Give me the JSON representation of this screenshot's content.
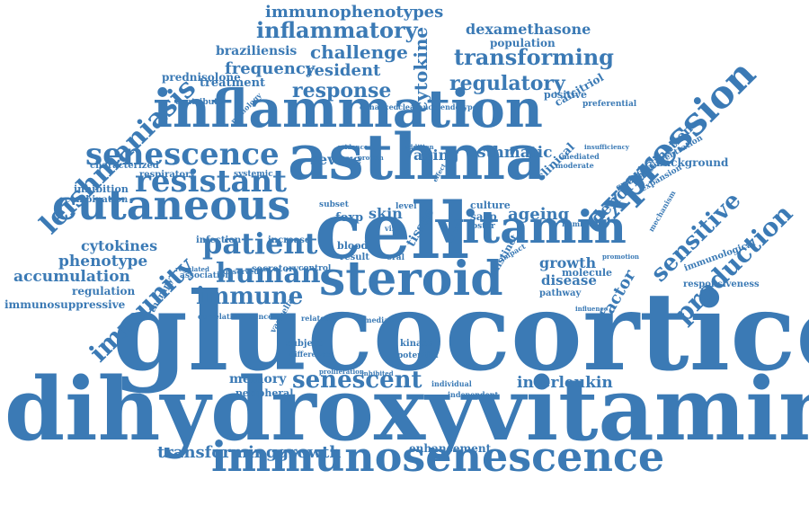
{
  "color": "#3b7ab5",
  "words": [
    "glucocorticoid",
    "dihydroxyvitamin",
    "cell",
    "asthma",
    "inflammation",
    "steroid",
    "vitamin",
    "immunosenescence",
    "cutaneous",
    "expression",
    "senescence",
    "resistant",
    "patient",
    "human",
    "immune",
    "senescent",
    "leishmaniasis",
    "immunity",
    "production",
    "sensitive",
    "transforminggrowth",
    "response",
    "regulatory",
    "transforming",
    "challenge",
    "resident",
    "frequency",
    "inflammatory",
    "immunophenotypes",
    "cytokine",
    "dexamethasone",
    "population",
    "braziliensis",
    "prednisolone",
    "treatment",
    "interleukin",
    "enhancement",
    "memory",
    "peripheral",
    "accumulation",
    "phenotype",
    "cytokines",
    "regulation",
    "immunosuppressive",
    "inhibition",
    "combination",
    "characterized",
    "respiratory",
    "systemic",
    "contribute",
    "pathology",
    "ageing",
    "dendritic",
    "vaccination",
    "background",
    "factor",
    "growth",
    "disease",
    "molecule",
    "immunological",
    "responsiveness",
    "pathway",
    "aging",
    "asthmatic",
    "clinical",
    "severe",
    "skin",
    "foxp",
    "sasp",
    "culture",
    "zoster",
    "infection",
    "increase",
    "secretory",
    "control",
    "blood",
    "result",
    "subject",
    "difference",
    "kinase",
    "potential",
    "individual",
    "independent",
    "calcitriol",
    "positive",
    "preferential",
    "specific",
    "concentration",
    "expansion",
    "mechanism",
    "tissue",
    "distinct",
    "oral",
    "level",
    "subset",
    "therapy",
    "correlation",
    "incidence",
    "related",
    "median",
    "varicella",
    "association",
    "observed",
    "regulated",
    "mediated",
    "moderate",
    "insufficiency",
    "promotion",
    "impact",
    "proliferation",
    "inhibited",
    "enhanced",
    "clearance",
    "endotypes",
    "evidence",
    "protein",
    "addition",
    "effect",
    "virus",
    "number",
    "influence",
    "important",
    "induction"
  ]
}
